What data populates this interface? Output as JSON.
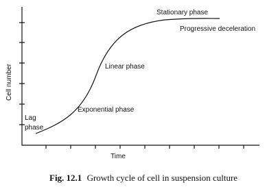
{
  "diagram": {
    "y_axis_label": "Cell number",
    "x_axis_label": "Time",
    "phases": {
      "lag": [
        "Lag",
        "phase"
      ],
      "exponential": "Exponential phase",
      "linear": "Linear phase",
      "deceleration": "Progressive deceleration",
      "stationary": "Stationary phase"
    },
    "caption": {
      "number": "Fig. 12.1",
      "text": "Growth cycle of cell in suspension culture"
    }
  }
}
